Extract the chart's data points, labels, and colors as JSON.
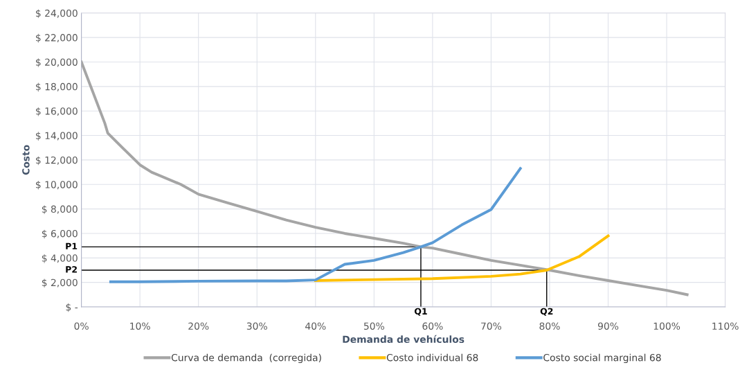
{
  "chart_data": {
    "type": "line",
    "xlabel": "Demanda de vehículos",
    "ylabel": "Costo",
    "series": [
      {
        "name": "Curva de demanda  (corregida)",
        "color": "#a5a5a5",
        "x": [
          0,
          4,
          4.5,
          7,
          10,
          12,
          17,
          20,
          25,
          30,
          35,
          40,
          45,
          50,
          55,
          58,
          60,
          65,
          70,
          75,
          80,
          85,
          90,
          95,
          100,
          103.5
        ],
        "values": [
          20000,
          15000,
          14200,
          13000,
          11600,
          11000,
          10000,
          9200,
          8500,
          7800,
          7100,
          6500,
          6000,
          5600,
          5200,
          4900,
          4800,
          4300,
          3800,
          3400,
          3000,
          2550,
          2150,
          1750,
          1350,
          1000
        ]
      },
      {
        "name": "Costo individual 68",
        "color": "#ffc000",
        "x": [
          40,
          50,
          60,
          70,
          75,
          79.5,
          85,
          90
        ],
        "values": [
          2150,
          2230,
          2310,
          2500,
          2680,
          3000,
          4100,
          5800
        ]
      },
      {
        "name": "Costo social marginal 68",
        "color": "#5b9bd5",
        "x": [
          5,
          10,
          20,
          30,
          35,
          40,
          45,
          50,
          55,
          58,
          60,
          65,
          70,
          75
        ],
        "values": [
          2050,
          2050,
          2100,
          2120,
          2120,
          2200,
          3480,
          3800,
          4430,
          4900,
          5240,
          6700,
          7950,
          11300
        ]
      },
      {
        "color": "#000000",
        "x": [
          0,
          58,
          58
        ],
        "values": [
          4900,
          4900,
          0
        ]
      },
      {
        "color": "#000000",
        "x": [
          0,
          79.5,
          79.5
        ],
        "values": [
          3000,
          3000,
          0
        ]
      }
    ],
    "annotations": [
      {
        "text": "P1",
        "x": 0,
        "y": 4900
      },
      {
        "text": "P2",
        "x": 0,
        "y": 3000
      },
      {
        "text": "Q1",
        "x": 58,
        "y": 0
      },
      {
        "text": "Q2",
        "x": 79.5,
        "y": 0
      }
    ],
    "xlim": [
      0,
      110
    ],
    "xticks": [
      {
        "value": 0,
        "label": "0%"
      },
      {
        "value": 10,
        "label": "10%"
      },
      {
        "value": 20,
        "label": "20%"
      },
      {
        "value": 30,
        "label": "30%"
      },
      {
        "value": 40,
        "label": "40%"
      },
      {
        "value": 50,
        "label": "50%"
      },
      {
        "value": 60,
        "label": "60%"
      },
      {
        "value": 70,
        "label": "70%"
      },
      {
        "value": 80,
        "label": "80%"
      },
      {
        "value": 90,
        "label": "90%"
      },
      {
        "value": 100,
        "label": "100%"
      },
      {
        "value": 110,
        "label": "110%"
      }
    ],
    "ylim": [
      0,
      24000
    ],
    "yticks": [
      {
        "value": 0,
        "label": "$ -"
      },
      {
        "value": 2000,
        "label": "$ 2,000"
      },
      {
        "value": 4000,
        "label": "$ 4,000"
      },
      {
        "value": 6000,
        "label": "$ 6,000"
      },
      {
        "value": 8000,
        "label": "$ 8,000"
      },
      {
        "value": 10000,
        "label": "$ 10,000"
      },
      {
        "value": 12000,
        "label": "$ 12,000"
      },
      {
        "value": 14000,
        "label": "$ 14,000"
      },
      {
        "value": 16000,
        "label": "$ 16,000"
      },
      {
        "value": 18000,
        "label": "$ 18,000"
      },
      {
        "value": 20000,
        "label": "$ 20,000"
      },
      {
        "value": 22000,
        "label": "$ 22,000"
      },
      {
        "value": 24000,
        "label": "$ 24,000"
      }
    ],
    "grid": true,
    "legend": "bottom",
    "marker": "none",
    "line_style": "solid"
  }
}
